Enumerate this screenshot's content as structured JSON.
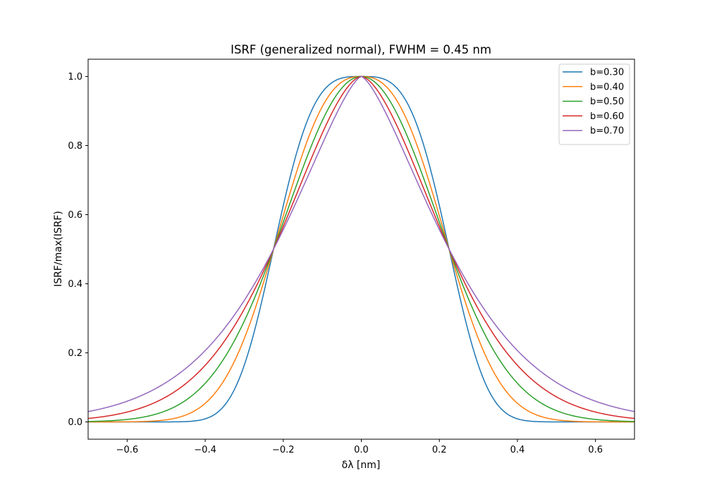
{
  "chart_data": {
    "type": "line",
    "title": "ISRF (generalized normal), FWHM = 0.45 nm",
    "xlabel": "δλ [nm]",
    "ylabel": "ISRF/max(ISRF)",
    "xlim": [
      -0.7,
      0.7
    ],
    "ylim": [
      -0.05,
      1.05
    ],
    "xticks": [
      -0.6,
      -0.4,
      -0.2,
      0.0,
      0.2,
      0.4,
      0.6
    ],
    "xtick_labels": [
      "−0.6",
      "−0.4",
      "−0.2",
      "0.0",
      "0.2",
      "0.4",
      "0.6"
    ],
    "yticks": [
      0.0,
      0.2,
      0.4,
      0.6,
      0.8,
      1.0
    ],
    "ytick_labels": [
      "0.0",
      "0.2",
      "0.4",
      "0.6",
      "0.8",
      "1.0"
    ],
    "grid": false,
    "legend_position": "top-right",
    "fwhm": 0.45,
    "series": [
      {
        "name": "b=0.30",
        "b": 0.3,
        "color": "#1f77b4"
      },
      {
        "name": "b=0.40",
        "b": 0.4,
        "color": "#ff7f0e"
      },
      {
        "name": "b=0.50",
        "b": 0.5,
        "color": "#2ca02c"
      },
      {
        "name": "b=0.60",
        "b": 0.6,
        "color": "#d62728"
      },
      {
        "name": "b=0.70",
        "b": 0.7,
        "color": "#9467bd"
      }
    ]
  }
}
